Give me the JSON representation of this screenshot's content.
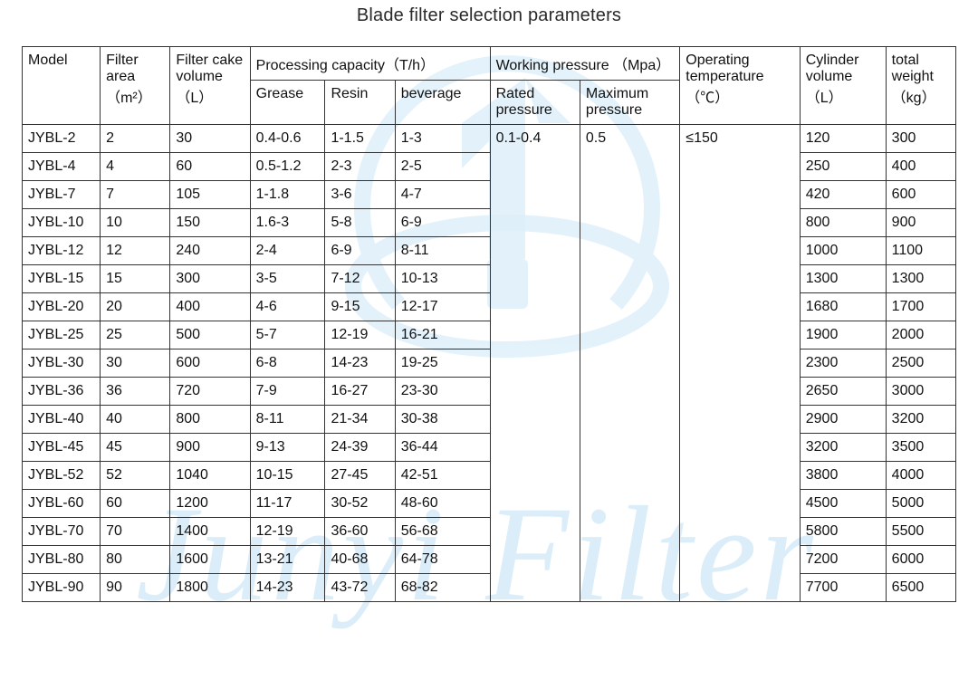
{
  "title": "Blade filter selection parameters",
  "watermark_text": "Junyi Filter",
  "watermark_color": "#bcdff5",
  "header": {
    "model": "Model",
    "filter_area": "Filter area （m²）",
    "filter_cake": "Filter cake volume （L）",
    "proc_cap": "Processing capacity（T/h）",
    "grease": "Grease",
    "resin": "Resin",
    "beverage": "beverage",
    "work_pressure": "Working pressure （Mpa）",
    "rated": "Rated pressure",
    "max": "Maximum pressure",
    "temp": "Operating temperature （℃）",
    "cyl": "Cylinder volume （L）",
    "weight": "total weight （kg）"
  },
  "merged": {
    "rated_pressure": "0.1-0.4",
    "max_pressure": "0.5",
    "temperature": "≤150"
  },
  "rows": [
    {
      "model": "JYBL-2",
      "area": "2",
      "cake": "30",
      "grease": "0.4-0.6",
      "resin": "1-1.5",
      "bev": "1-3",
      "cyl": "120",
      "wt": "300"
    },
    {
      "model": "JYBL-4",
      "area": "4",
      "cake": "60",
      "grease": "0.5-1.2",
      "resin": "2-3",
      "bev": "2-5",
      "cyl": "250",
      "wt": "400"
    },
    {
      "model": "JYBL-7",
      "area": "7",
      "cake": "105",
      "grease": "1-1.8",
      "resin": "3-6",
      "bev": "4-7",
      "cyl": "420",
      "wt": "600"
    },
    {
      "model": "JYBL-10",
      "area": "10",
      "cake": "150",
      "grease": "1.6-3",
      "resin": "5-8",
      "bev": "6-9",
      "cyl": "800",
      "wt": "900"
    },
    {
      "model": "JYBL-12",
      "area": "12",
      "cake": "240",
      "grease": "2-4",
      "resin": "6-9",
      "bev": "8-11",
      "cyl": "1000",
      "wt": "1100"
    },
    {
      "model": "JYBL-15",
      "area": "15",
      "cake": "300",
      "grease": "3-5",
      "resin": "7-12",
      "bev": "10-13",
      "cyl": "1300",
      "wt": "1300"
    },
    {
      "model": "JYBL-20",
      "area": "20",
      "cake": "400",
      "grease": "4-6",
      "resin": "9-15",
      "bev": "12-17",
      "cyl": "1680",
      "wt": "1700"
    },
    {
      "model": "JYBL-25",
      "area": "25",
      "cake": "500",
      "grease": "5-7",
      "resin": "12-19",
      "bev": "16-21",
      "cyl": "1900",
      "wt": "2000"
    },
    {
      "model": "JYBL-30",
      "area": "30",
      "cake": "600",
      "grease": "6-8",
      "resin": "14-23",
      "bev": "19-25",
      "cyl": "2300",
      "wt": "2500"
    },
    {
      "model": "JYBL-36",
      "area": "36",
      "cake": "720",
      "grease": "7-9",
      "resin": "16-27",
      "bev": "23-30",
      "cyl": "2650",
      "wt": "3000"
    },
    {
      "model": "JYBL-40",
      "area": "40",
      "cake": "800",
      "grease": "8-11",
      "resin": "21-34",
      "bev": "30-38",
      "cyl": "2900",
      "wt": "3200"
    },
    {
      "model": "JYBL-45",
      "area": "45",
      "cake": "900",
      "grease": "9-13",
      "resin": "24-39",
      "bev": "36-44",
      "cyl": "3200",
      "wt": "3500"
    },
    {
      "model": "JYBL-52",
      "area": "52",
      "cake": "1040",
      "grease": "10-15",
      "resin": "27-45",
      "bev": "42-51",
      "cyl": "3800",
      "wt": "4000"
    },
    {
      "model": "JYBL-60",
      "area": "60",
      "cake": "1200",
      "grease": "11-17",
      "resin": "30-52",
      "bev": "48-60",
      "cyl": "4500",
      "wt": "5000"
    },
    {
      "model": "JYBL-70",
      "area": "70",
      "cake": "1400",
      "grease": "12-19",
      "resin": "36-60",
      "bev": "56-68",
      "cyl": "5800",
      "wt": "5500"
    },
    {
      "model": "JYBL-80",
      "area": "80",
      "cake": "1600",
      "grease": "13-21",
      "resin": "40-68",
      "bev": "64-78",
      "cyl": "7200",
      "wt": "6000"
    },
    {
      "model": "JYBL-90",
      "area": "90",
      "cake": "1800",
      "grease": "14-23",
      "resin": "43-72",
      "bev": "68-82",
      "cyl": "7700",
      "wt": "6500"
    }
  ],
  "style": {
    "title_fontsize": 20,
    "cell_fontsize": 16,
    "border_color": "#333333",
    "text_color": "#111111",
    "background": "#ffffff"
  }
}
